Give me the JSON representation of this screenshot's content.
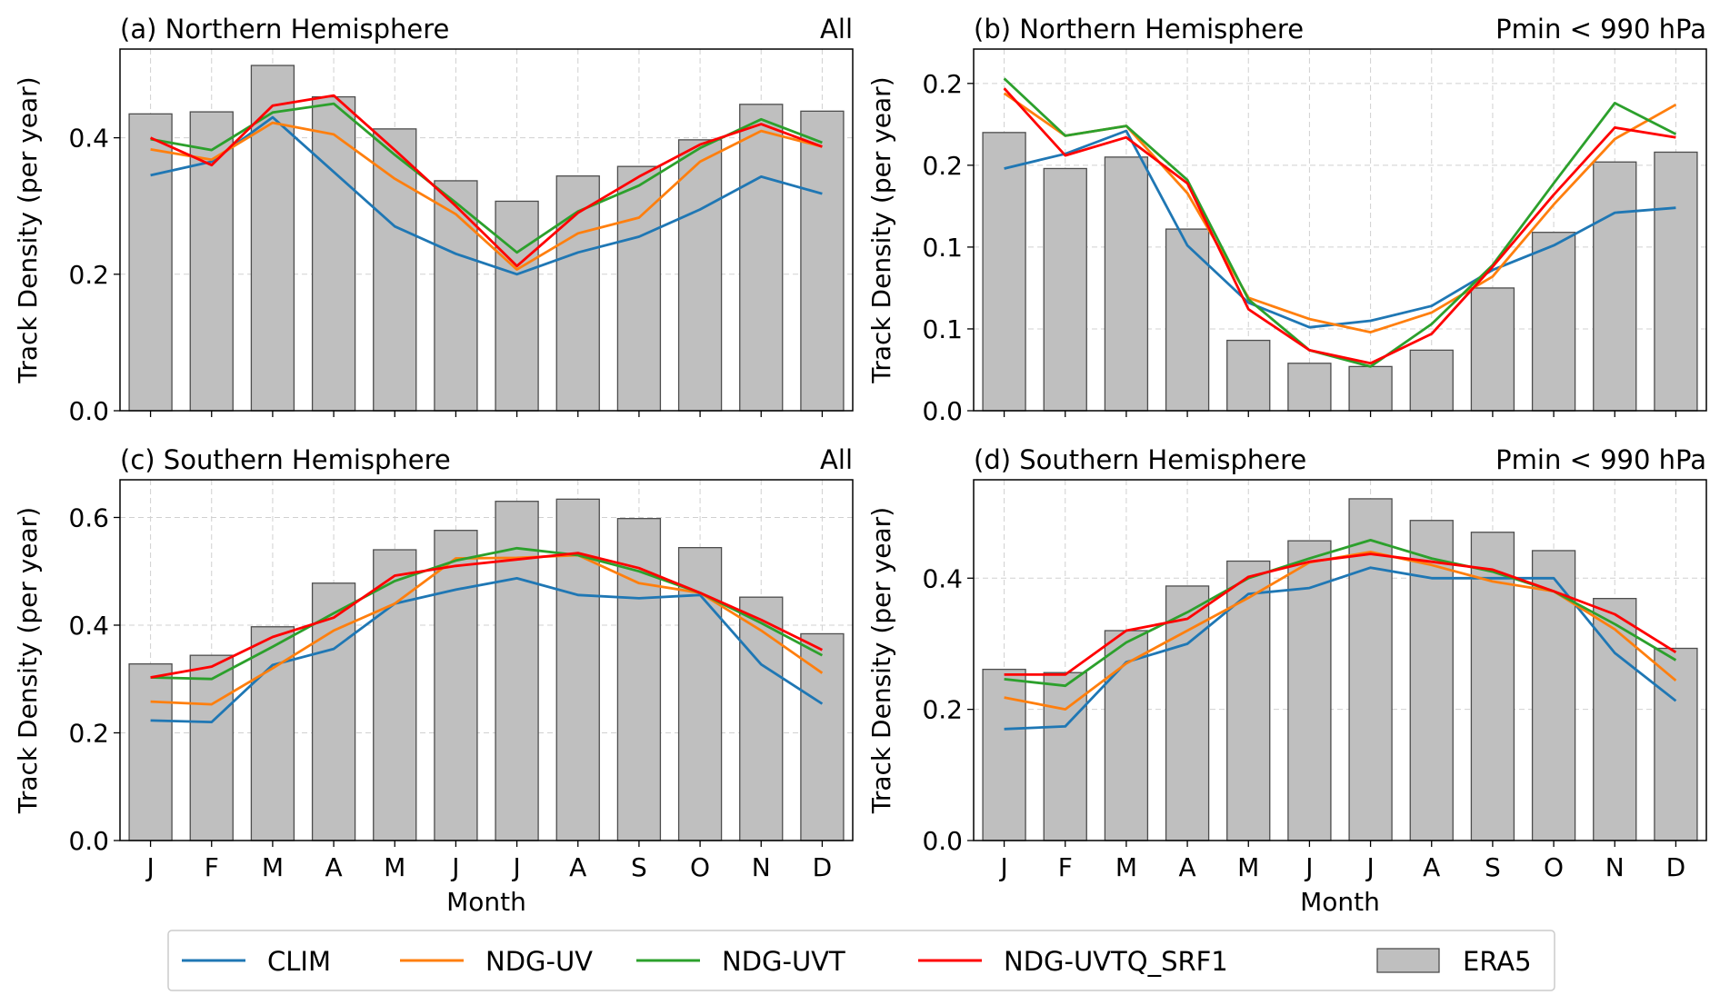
{
  "figure": {
    "months": [
      "J",
      "F",
      "M",
      "A",
      "M",
      "J",
      "J",
      "A",
      "S",
      "O",
      "N",
      "D"
    ],
    "xlabel": "Month",
    "ylabel": "Track Density (per year)"
  },
  "legend": {
    "placement": "bottom-center",
    "entries": [
      {
        "name": "CLIM",
        "type": "line",
        "color": "#1f77b4"
      },
      {
        "name": "NDG-UV",
        "type": "line",
        "color": "#ff7f0e"
      },
      {
        "name": "NDG-UVT",
        "type": "line",
        "color": "#2ca02c"
      },
      {
        "name": "NDG-UVTQ_SRF1",
        "type": "line",
        "color": "#ff0000"
      },
      {
        "name": "ERA5",
        "type": "bar",
        "color": "#bfbfbf"
      }
    ]
  },
  "chart_data": [
    {
      "type": "bar+line",
      "title": "(a) Northern Hemisphere",
      "subtitle": "All",
      "xlabel": "",
      "ylabel": "Track Density (per year)",
      "categories": [
        "J",
        "F",
        "M",
        "A",
        "M",
        "J",
        "J",
        "A",
        "S",
        "O",
        "N",
        "D"
      ],
      "ylim": [
        0,
        0.53
      ],
      "yticks": [
        0.0,
        0.2,
        0.4
      ],
      "ytick_labels": [
        "0.0",
        "0.2",
        "0.4"
      ],
      "bars": {
        "name": "ERA5",
        "values": [
          0.435,
          0.438,
          0.506,
          0.46,
          0.413,
          0.337,
          0.307,
          0.344,
          0.358,
          0.397,
          0.449,
          0.439
        ]
      },
      "series": [
        {
          "name": "CLIM",
          "values": [
            0.345,
            0.365,
            0.43,
            0.35,
            0.27,
            0.23,
            0.2,
            0.232,
            0.255,
            0.295,
            0.343,
            0.318
          ]
        },
        {
          "name": "NDG-UV",
          "values": [
            0.383,
            0.368,
            0.422,
            0.405,
            0.34,
            0.288,
            0.207,
            0.26,
            0.283,
            0.365,
            0.41,
            0.387
          ]
        },
        {
          "name": "NDG-UVT",
          "values": [
            0.398,
            0.382,
            0.437,
            0.45,
            0.375,
            0.305,
            0.232,
            0.292,
            0.33,
            0.385,
            0.427,
            0.393
          ]
        },
        {
          "name": "NDG-UVTQ_SRF1",
          "values": [
            0.4,
            0.36,
            0.447,
            0.462,
            0.382,
            0.3,
            0.212,
            0.29,
            0.343,
            0.39,
            0.42,
            0.387
          ]
        }
      ]
    },
    {
      "type": "bar+line",
      "title": "(b) Northern Hemisphere",
      "subtitle": "Pmin < 990 hPa",
      "xlabel": "",
      "ylabel": "Track Density (per year)",
      "categories": [
        "J",
        "F",
        "M",
        "A",
        "M",
        "J",
        "J",
        "A",
        "S",
        "O",
        "N",
        "D"
      ],
      "ylim": [
        0,
        0.221
      ],
      "yticks": [
        0.0,
        0.05,
        0.1,
        0.15,
        0.2
      ],
      "ytick_labels": [
        "0.0",
        "0.1",
        "0.1",
        "0.2",
        "0.2"
      ],
      "bars": {
        "name": "ERA5",
        "values": [
          0.17,
          0.148,
          0.155,
          0.111,
          0.043,
          0.029,
          0.027,
          0.037,
          0.075,
          0.109,
          0.152,
          0.158
        ]
      },
      "series": [
        {
          "name": "CLIM",
          "values": [
            0.148,
            0.157,
            0.171,
            0.101,
            0.066,
            0.051,
            0.055,
            0.064,
            0.086,
            0.101,
            0.121,
            0.124
          ]
        },
        {
          "name": "NDG-UV",
          "values": [
            0.194,
            0.168,
            0.174,
            0.133,
            0.069,
            0.056,
            0.048,
            0.06,
            0.082,
            0.126,
            0.166,
            0.187
          ]
        },
        {
          "name": "NDG-UVT",
          "values": [
            0.203,
            0.168,
            0.174,
            0.141,
            0.068,
            0.037,
            0.027,
            0.053,
            0.089,
            0.139,
            0.188,
            0.169
          ]
        },
        {
          "name": "NDG-UVTQ_SRF1",
          "values": [
            0.197,
            0.156,
            0.167,
            0.139,
            0.062,
            0.037,
            0.029,
            0.047,
            0.088,
            0.132,
            0.173,
            0.167
          ]
        }
      ]
    },
    {
      "type": "bar+line",
      "title": "(c) Southern Hemisphere",
      "subtitle": "All",
      "xlabel": "Month",
      "ylabel": "Track Density (per year)",
      "categories": [
        "J",
        "F",
        "M",
        "A",
        "M",
        "J",
        "J",
        "A",
        "S",
        "O",
        "N",
        "D"
      ],
      "ylim": [
        0,
        0.67
      ],
      "yticks": [
        0.0,
        0.2,
        0.4,
        0.6
      ],
      "ytick_labels": [
        "0.0",
        "0.2",
        "0.4",
        "0.6"
      ],
      "bars": {
        "name": "ERA5",
        "values": [
          0.328,
          0.344,
          0.397,
          0.478,
          0.54,
          0.576,
          0.63,
          0.634,
          0.598,
          0.544,
          0.452,
          0.384
        ]
      },
      "series": [
        {
          "name": "CLIM",
          "values": [
            0.223,
            0.22,
            0.326,
            0.356,
            0.44,
            0.466,
            0.487,
            0.456,
            0.45,
            0.456,
            0.327,
            0.254
          ]
        },
        {
          "name": "NDG-UV",
          "values": [
            0.258,
            0.253,
            0.32,
            0.39,
            0.44,
            0.524,
            0.525,
            0.53,
            0.478,
            0.46,
            0.39,
            0.311
          ]
        },
        {
          "name": "NDG-UVT",
          "values": [
            0.303,
            0.3,
            0.36,
            0.422,
            0.482,
            0.52,
            0.543,
            0.53,
            0.5,
            0.46,
            0.404,
            0.344
          ]
        },
        {
          "name": "NDG-UVTQ_SRF1",
          "values": [
            0.303,
            0.323,
            0.378,
            0.414,
            0.492,
            0.51,
            0.522,
            0.534,
            0.506,
            0.46,
            0.41,
            0.354
          ]
        }
      ]
    },
    {
      "type": "bar+line",
      "title": "(d) Southern Hemisphere",
      "subtitle": "Pmin < 990 hPa",
      "xlabel": "Month",
      "ylabel": "Track Density (per year)",
      "categories": [
        "J",
        "F",
        "M",
        "A",
        "M",
        "J",
        "J",
        "A",
        "S",
        "O",
        "N",
        "D"
      ],
      "ylim": [
        0,
        0.55
      ],
      "yticks": [
        0.0,
        0.2,
        0.4
      ],
      "ytick_labels": [
        "0.0",
        "0.2",
        "0.4"
      ],
      "bars": {
        "name": "ERA5",
        "values": [
          0.261,
          0.256,
          0.32,
          0.388,
          0.426,
          0.457,
          0.521,
          0.488,
          0.47,
          0.442,
          0.369,
          0.293
        ]
      },
      "series": [
        {
          "name": "CLIM",
          "values": [
            0.17,
            0.174,
            0.272,
            0.3,
            0.376,
            0.385,
            0.416,
            0.4,
            0.4,
            0.4,
            0.286,
            0.213
          ]
        },
        {
          "name": "NDG-UV",
          "values": [
            0.218,
            0.2,
            0.27,
            0.32,
            0.37,
            0.424,
            0.44,
            0.42,
            0.395,
            0.38,
            0.322,
            0.244
          ]
        },
        {
          "name": "NDG-UVT",
          "values": [
            0.246,
            0.236,
            0.302,
            0.348,
            0.4,
            0.43,
            0.458,
            0.43,
            0.41,
            0.38,
            0.33,
            0.275
          ]
        },
        {
          "name": "NDG-UVTQ_SRF1",
          "values": [
            0.253,
            0.253,
            0.32,
            0.338,
            0.402,
            0.425,
            0.437,
            0.425,
            0.413,
            0.38,
            0.345,
            0.287
          ]
        }
      ]
    }
  ]
}
